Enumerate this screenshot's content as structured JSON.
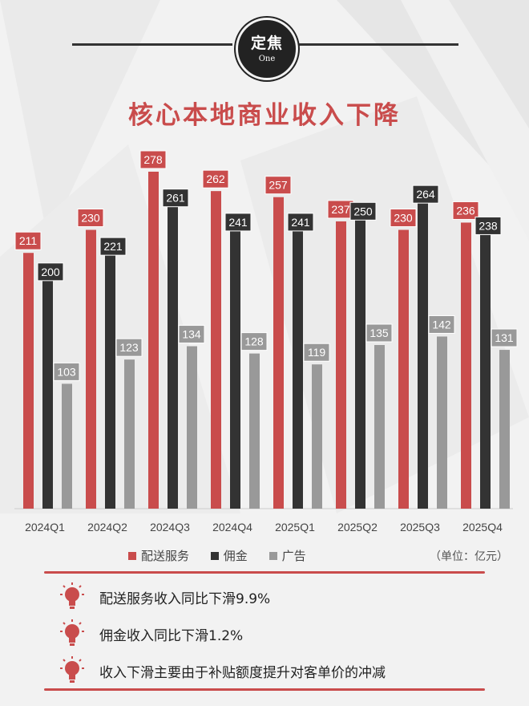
{
  "badge": {
    "main": "定焦",
    "sub": "One"
  },
  "title": "核心本地商业收入下降",
  "colors": {
    "red": "#c94c4c",
    "dark": "#333333",
    "gray": "#999999"
  },
  "chart_data": {
    "type": "bar",
    "categories": [
      "2024Q1",
      "2024Q2",
      "2024Q3",
      "2024Q4",
      "2025Q1",
      "2025Q2",
      "2025Q3",
      "2025Q4"
    ],
    "series": [
      {
        "name": "配送服务",
        "color": "#c94c4c",
        "values": [
          211,
          230,
          278,
          262,
          257,
          237,
          230,
          236
        ]
      },
      {
        "name": "佣金",
        "color": "#333333",
        "values": [
          200,
          221,
          261,
          241,
          241,
          250,
          264,
          238
        ]
      },
      {
        "name": "广告",
        "color": "#999999",
        "values": [
          103,
          123,
          134,
          128,
          119,
          135,
          142,
          131
        ]
      }
    ],
    "ylim": [
      0,
      300
    ],
    "legend": "bottom",
    "unit_label": "（单位：亿元）"
  },
  "bullets": [
    {
      "icon": "lightbulb-icon",
      "text": "配送服务收入同比下滑9.9%"
    },
    {
      "icon": "lightbulb-icon",
      "text": "佣金收入同比下滑1.2%"
    },
    {
      "icon": "lightbulb-icon",
      "text": "收入下滑主要由于补贴额度提升对客单价的冲减"
    }
  ]
}
